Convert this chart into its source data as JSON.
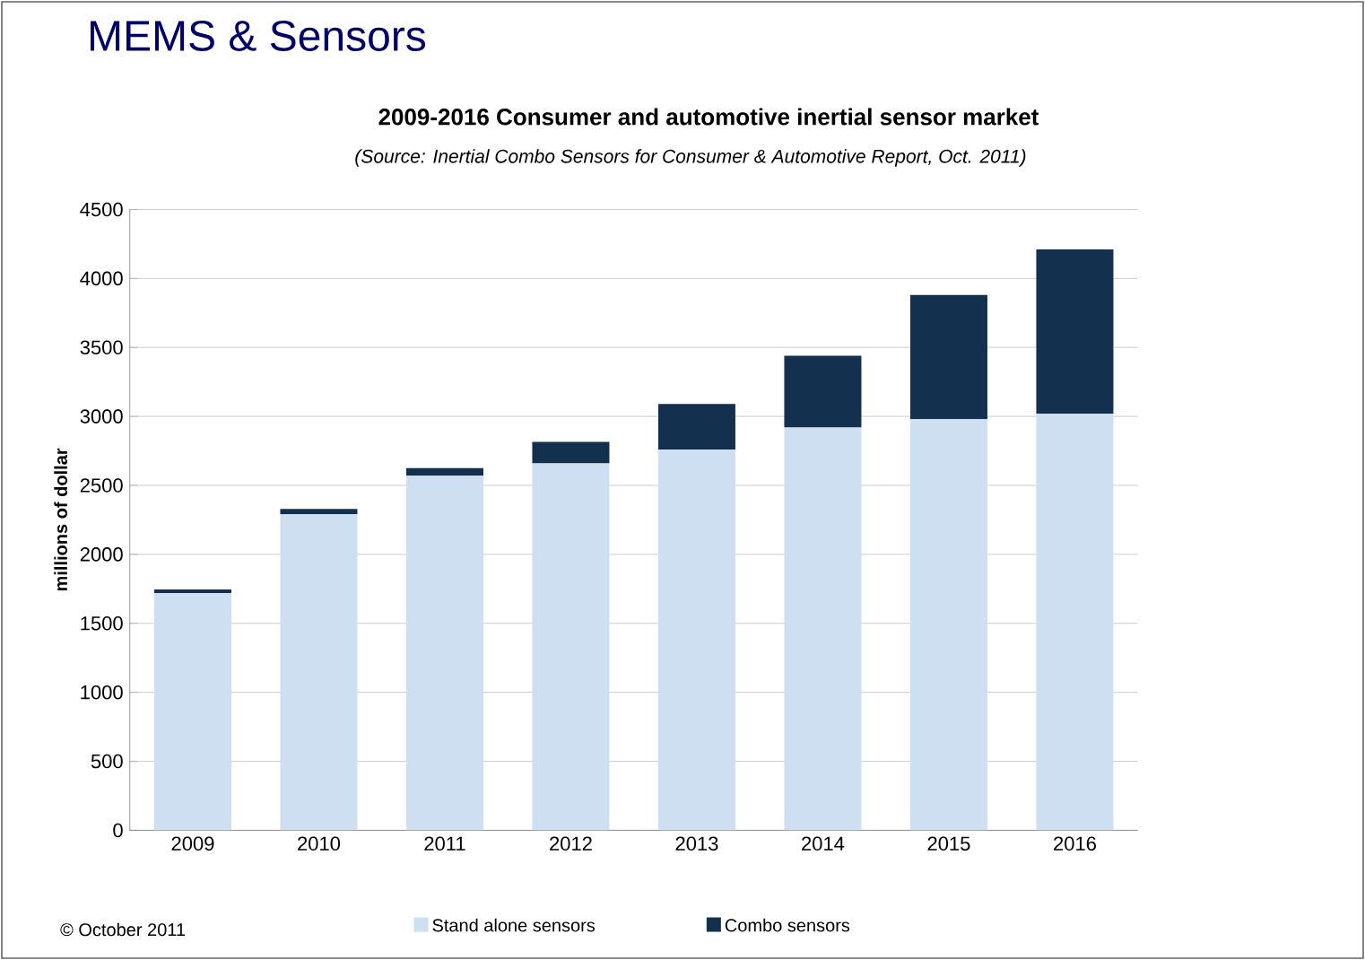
{
  "chart_data": {
    "type": "bar",
    "title": "2009-2016 Consumer and automotive inertial sensor market",
    "subtitle": "(Source: Inertial Combo Sensors for Consumer & Automotive Report, Oct. 2011)",
    "ylabel": "millions of dollar",
    "annotations": [
      "MEMS & Sensors",
      "© October 2011"
    ],
    "categories": [
      "2009",
      "2010",
      "2011",
      "2012",
      "2013",
      "2014",
      "2015",
      "2016"
    ],
    "stacked": true,
    "series": [
      {
        "name": "Stand alone sensors",
        "color": "#cddff0",
        "values": [
          1720,
          2290,
          2570,
          2660,
          2760,
          2920,
          2980,
          3020
        ]
      },
      {
        "name": "Combo sensors",
        "color": "#14304f",
        "values": [
          25,
          40,
          55,
          155,
          330,
          520,
          900,
          1190
        ]
      }
    ],
    "ylim": [
      0,
      4500
    ],
    "yticks": [
      0,
      500,
      1000,
      1500,
      2000,
      2500,
      3000,
      3500,
      4000,
      4500
    ],
    "grid": "y",
    "legend": "bottom"
  }
}
